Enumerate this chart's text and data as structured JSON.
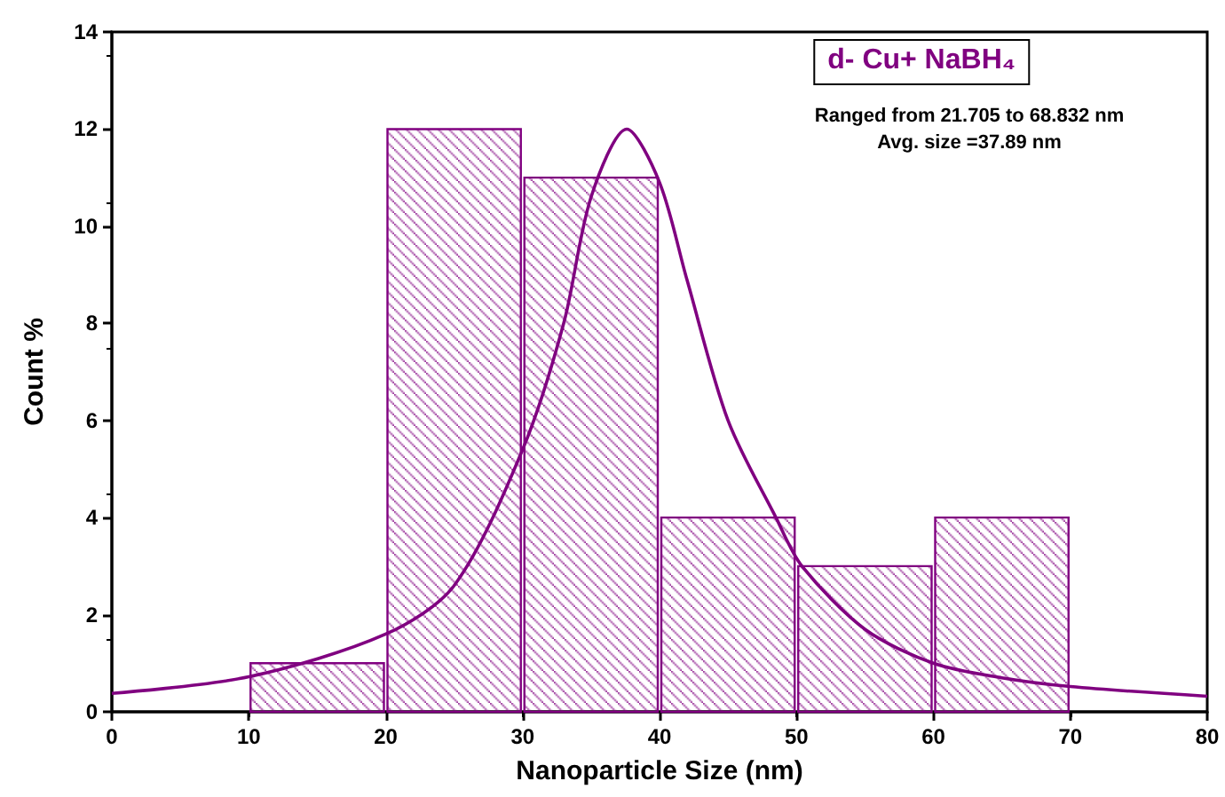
{
  "chart_data": {
    "type": "histogram",
    "title": "d- Cu+ NaBH₄",
    "annotations": [
      "Ranged from 21.705 to 68.832 nm",
      "Avg. size =37.89 nm"
    ],
    "xlabel": "Nanoparticle Size (nm)",
    "ylabel": "Count %",
    "bins": [
      10,
      20,
      30,
      40,
      50,
      60,
      70
    ],
    "series": [
      {
        "color": "#800080",
        "values": [
          1,
          12,
          11,
          4,
          3,
          4
        ]
      },
      {
        "type": "line",
        "color": "#800080",
        "x": [
          0,
          10,
          20,
          25,
          30,
          33,
          35,
          37.6,
          40,
          42,
          45,
          48.5,
          50.4,
          55,
          60,
          65,
          70,
          80
        ],
        "values": [
          0.38,
          0.72,
          1.6,
          2.6,
          5.4,
          8,
          10.6,
          12,
          10.9,
          8.9,
          6.0,
          4.0,
          3.0,
          1.7,
          1.0,
          0.7,
          0.52,
          0.32
        ]
      }
    ],
    "xlim": [
      0,
      80
    ],
    "xticks": [
      0,
      10,
      20,
      30,
      40,
      50,
      60,
      70,
      80
    ],
    "ylim": [
      0,
      14
    ],
    "yticks": [
      0,
      2,
      4,
      6,
      8,
      10,
      12,
      14
    ],
    "grid": false,
    "marker": "none",
    "line_style": "solid"
  }
}
